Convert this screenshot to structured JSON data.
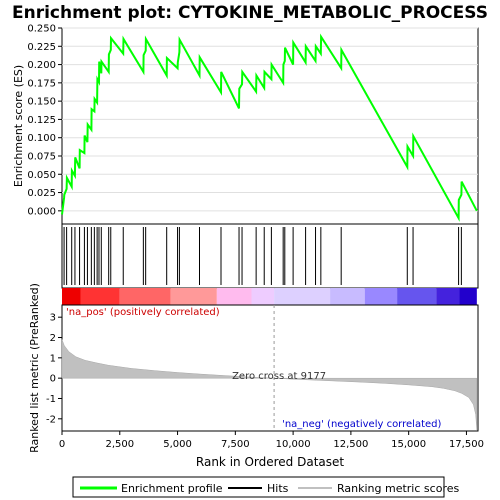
{
  "title": "Enrichment plot: CYTOKINE_METABOLIC_PROCESS",
  "chart_data": {
    "type": "line",
    "title": "Enrichment plot: CYTOKINE_METABOLIC_PROCESS",
    "xlabel": "Rank in Ordered Dataset",
    "x_ticks": [
      0,
      2500,
      5000,
      7500,
      10000,
      12500,
      15000,
      17500
    ],
    "x_tick_labels": [
      "0",
      "2,500",
      "5,000",
      "7,500",
      "10,000",
      "12,500",
      "15,000",
      "17,500"
    ],
    "xlim": [
      0,
      18000
    ],
    "top_panel": {
      "ylabel": "Enrichment score (ES)",
      "ylim": [
        -0.018,
        0.25
      ],
      "y_ticks": [
        0.0,
        0.025,
        0.05,
        0.075,
        0.1,
        0.125,
        0.15,
        0.175,
        0.2,
        0.225,
        0.25
      ],
      "y_tick_labels": [
        "0.000",
        "0.025",
        "0.050",
        "0.075",
        "0.100",
        "0.125",
        "0.150",
        "0.175",
        "0.200",
        "0.225",
        "0.250"
      ],
      "series_name": "Enrichment profile",
      "color": "#00ff00",
      "x": [
        0,
        90,
        100,
        200,
        210,
        420,
        430,
        560,
        570,
        760,
        770,
        970,
        980,
        1100,
        1110,
        1270,
        1280,
        1400,
        1410,
        1520,
        1530,
        1600,
        1610,
        1700,
        1710,
        2020,
        2030,
        2110,
        2120,
        2650,
        2660,
        3520,
        3530,
        3620,
        3630,
        4530,
        4540,
        5000,
        5010,
        5080,
        5090,
        5950,
        5960,
        6880,
        6890,
        7660,
        7670,
        7790,
        7800,
        8400,
        8410,
        8750,
        8760,
        9060,
        9070,
        9570,
        9580,
        9640,
        9650,
        10000,
        10010,
        10540,
        10550,
        10970,
        10980,
        11200,
        11210,
        12080,
        12090,
        14940,
        14950,
        15190,
        15200,
        17160,
        17170,
        17280,
        17290,
        17950
      ],
      "y": [
        -0.005,
        0.018,
        0.022,
        0.03,
        0.045,
        0.033,
        0.055,
        0.048,
        0.073,
        0.058,
        0.083,
        0.079,
        0.103,
        0.094,
        0.118,
        0.111,
        0.139,
        0.136,
        0.153,
        0.148,
        0.18,
        0.176,
        0.204,
        0.188,
        0.204,
        0.19,
        0.214,
        0.22,
        0.236,
        0.215,
        0.235,
        0.19,
        0.213,
        0.219,
        0.235,
        0.185,
        0.209,
        0.195,
        0.203,
        0.217,
        0.234,
        0.185,
        0.21,
        0.162,
        0.19,
        0.14,
        0.167,
        0.173,
        0.19,
        0.163,
        0.185,
        0.168,
        0.19,
        0.18,
        0.2,
        0.175,
        0.2,
        0.205,
        0.223,
        0.2,
        0.23,
        0.203,
        0.225,
        0.205,
        0.225,
        0.215,
        0.238,
        0.195,
        0.22,
        0.06,
        0.088,
        0.075,
        0.102,
        -0.01,
        0.015,
        0.022,
        0.04,
        0.0
      ]
    },
    "hits": [
      90,
      200,
      420,
      560,
      760,
      970,
      1100,
      1270,
      1400,
      1520,
      1600,
      1700,
      2020,
      2110,
      2650,
      3520,
      3620,
      4530,
      5000,
      5080,
      5950,
      6880,
      7660,
      7790,
      8400,
      8750,
      9060,
      9570,
      9640,
      10000,
      10540,
      10970,
      11200,
      12080,
      14940,
      15190,
      17160,
      17280
    ],
    "hits_legend": "Hits",
    "bottom_panel": {
      "ylabel": "Ranked list metric (PreRanked)",
      "ylim": [
        -2.6,
        3.6
      ],
      "y_ticks": [
        -2,
        -1,
        0,
        1,
        2,
        3
      ],
      "y_tick_labels": [
        "-2",
        "-1",
        "0",
        "1",
        "2",
        "3"
      ],
      "series_name": "Ranking metric scores",
      "x": [
        0,
        100,
        300,
        600,
        1000,
        1500,
        2000,
        3000,
        4000,
        5000,
        6000,
        7000,
        8000,
        9177,
        10000,
        11000,
        12000,
        13000,
        14000,
        15000,
        16000,
        16500,
        17000,
        17300,
        17600,
        17800,
        17900,
        17950
      ],
      "y": [
        1.9,
        1.6,
        1.3,
        1.05,
        0.88,
        0.75,
        0.64,
        0.48,
        0.37,
        0.28,
        0.2,
        0.13,
        0.06,
        0.0,
        -0.05,
        -0.1,
        -0.15,
        -0.2,
        -0.26,
        -0.33,
        -0.42,
        -0.5,
        -0.62,
        -0.75,
        -0.95,
        -1.3,
        -1.8,
        -2.55
      ],
      "pos_label": "'na_pos' (positively correlated)",
      "neg_label": "'na_neg' (negatively correlated)",
      "zero_cross_label": "Zero cross at 9177",
      "zero_cross": 9177
    },
    "color_bar": {
      "colors": [
        "#ee0000",
        "#ff3333",
        "#ff6666",
        "#ff9999",
        "#ffbbee",
        "#eeccff",
        "#ddd0ff",
        "#c8bbff",
        "#9988ff",
        "#6655ee",
        "#4422dd",
        "#2200cc"
      ],
      "bounds": [
        0,
        800,
        2500,
        4700,
        6700,
        8200,
        9177,
        11600,
        13100,
        14500,
        16200,
        17200,
        17950
      ]
    },
    "legend": [
      "Enrichment profile",
      "Hits",
      "Ranking metric scores"
    ],
    "legend_position": "bottom"
  }
}
